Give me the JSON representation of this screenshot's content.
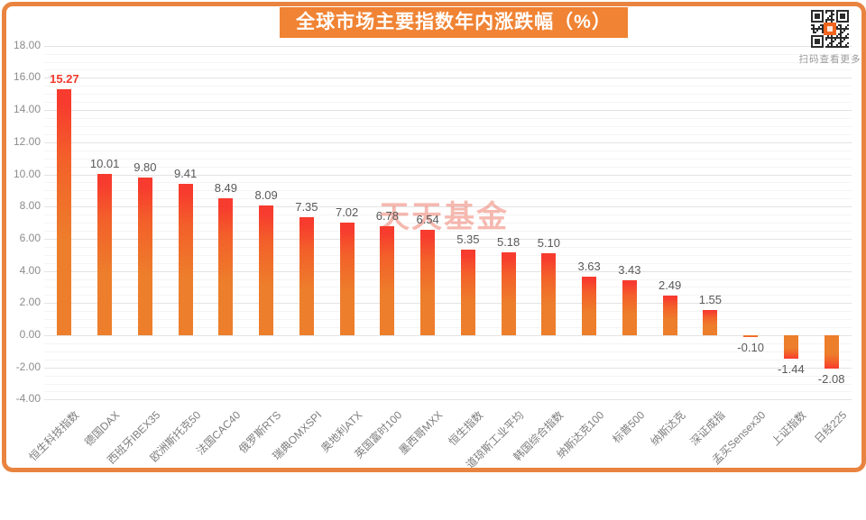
{
  "title": "全球市场主要指数年内涨跌幅（%）",
  "qr": {
    "caption": "扫码查看更多"
  },
  "watermark": "天天基金",
  "colors": {
    "frame_border": "#E98440",
    "title_bg": "#F08334",
    "title_text": "#FFFFFF",
    "bar_top_red": "#F73B2E",
    "bar_mid": "#F3602A",
    "bar_orange": "#ED7E2B",
    "highlight_value_label": "#F5382B",
    "value_label": "#595959",
    "axis_label": "#8C8C8C",
    "gridline_major": "#E3E3E3",
    "gridline_minor": "#F4F4F4",
    "qr_logo": "#F3641E",
    "watermark_color": "rgba(234,88,66,0.42)"
  },
  "chart_data": {
    "type": "bar",
    "title": "全球市场主要指数年内涨跌幅（%）",
    "xlabel": "",
    "ylabel": "",
    "ylim": [
      -4,
      18
    ],
    "ytick_step": 2,
    "grid": true,
    "legend": "none",
    "categories": [
      "恒生科技指数",
      "德国DAX",
      "西班牙IBEX35",
      "欧洲斯托克50",
      "法国CAC40",
      "俄罗斯RTS",
      "瑞典OMXSPI",
      "奥地利ATX",
      "英国富时100",
      "墨西哥MXX",
      "恒生指数",
      "道琼斯工业平均",
      "韩国综合指数",
      "纳斯达克100",
      "标普500",
      "纳斯达克",
      "深证成指",
      "孟买Sensex30",
      "上证指数",
      "日经225"
    ],
    "values": [
      15.27,
      10.01,
      9.8,
      9.41,
      8.49,
      8.09,
      7.35,
      7.02,
      6.78,
      6.54,
      5.35,
      5.18,
      5.1,
      3.63,
      3.43,
      2.49,
      1.55,
      -0.1,
      -1.44,
      -2.08
    ],
    "value_labels": [
      "15.27",
      "10.01",
      "9.80",
      "9.41",
      "8.49",
      "8.09",
      "7.35",
      "7.02",
      "6.78",
      "6.54",
      "5.35",
      "5.18",
      "5.10",
      "3.63",
      "3.43",
      "2.49",
      "1.55",
      "-0.10",
      "-1.44",
      "-2.08"
    ],
    "ytick_labels": [
      "18.00",
      "16.00",
      "14.00",
      "12.00",
      "10.00",
      "8.00",
      "6.00",
      "4.00",
      "2.00",
      "0.00",
      "-2.00",
      "-4.00"
    ],
    "highlighted_value_index": 0
  }
}
